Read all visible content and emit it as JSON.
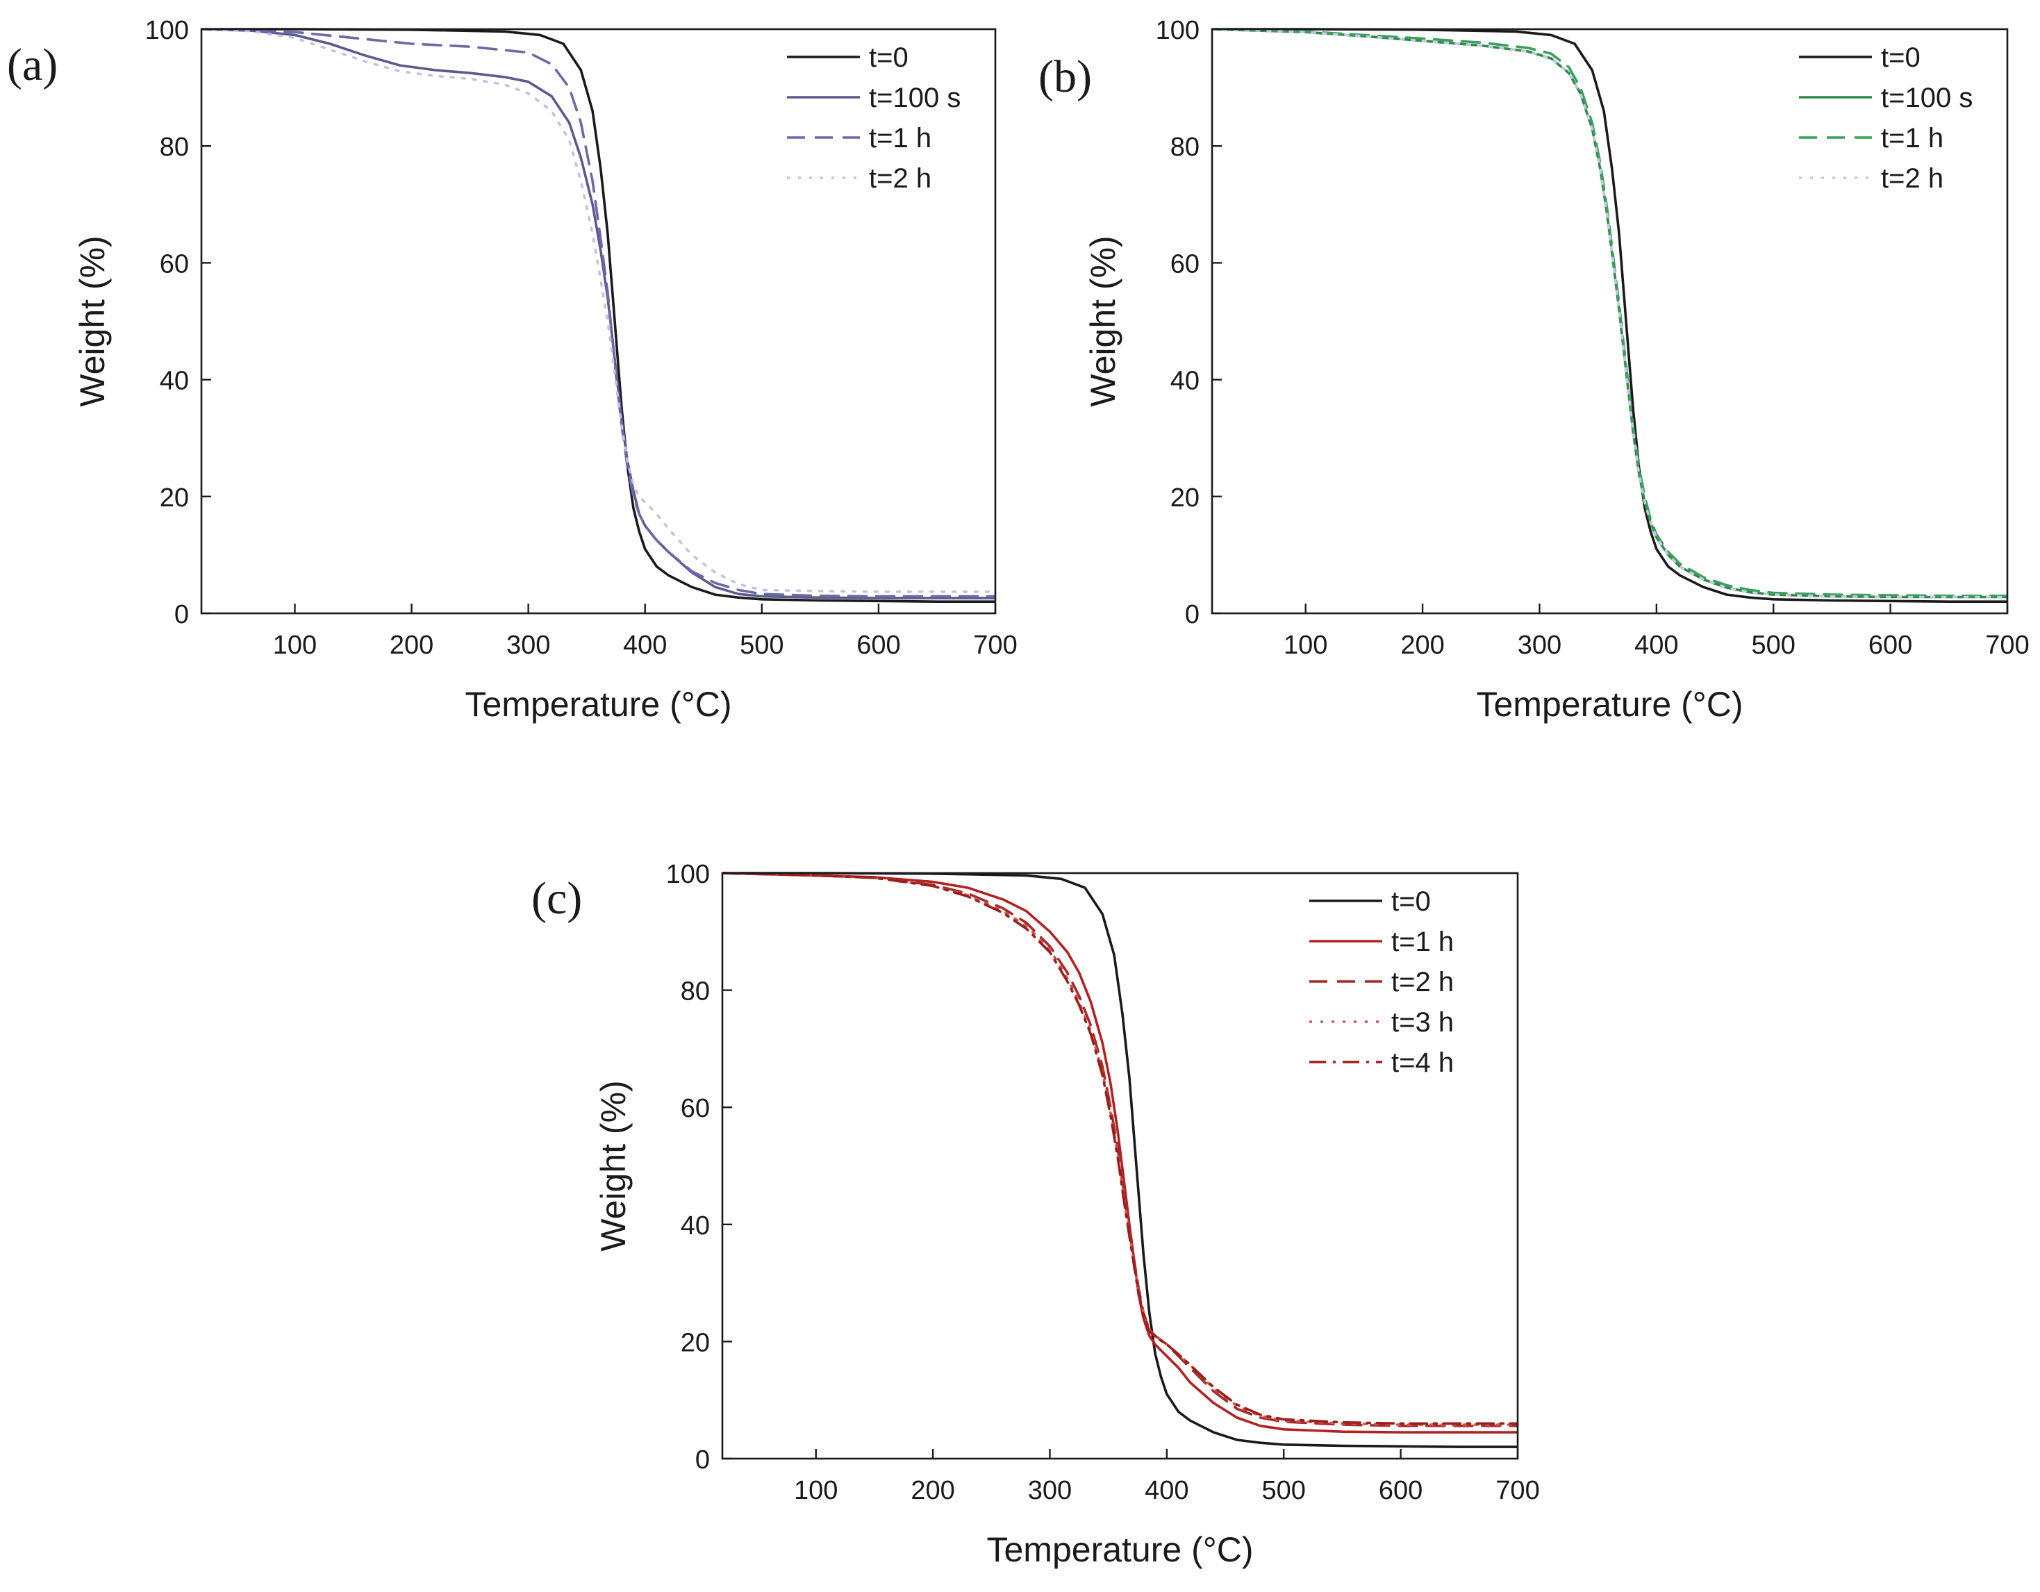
{
  "chart_data": [
    {
      "type": "line",
      "panel_label": "(a)",
      "xlabel": "Temperature (°C)",
      "ylabel": "Weight (%)",
      "xlim": [
        20,
        700
      ],
      "ylim": [
        0,
        100
      ],
      "xticks": [
        100,
        200,
        300,
        400,
        500,
        600,
        700
      ],
      "yticks": [
        0,
        20,
        40,
        60,
        80,
        100
      ],
      "legend_position": "top-right",
      "series": [
        {
          "name": "t=0",
          "color": "#1a1a1a",
          "dash": "solid",
          "x": [
            20,
            100,
            200,
            280,
            310,
            330,
            345,
            355,
            362,
            368,
            372,
            376,
            380,
            385,
            390,
            395,
            400,
            410,
            420,
            440,
            460,
            480,
            500,
            550,
            600,
            650,
            700
          ],
          "y": [
            100,
            100,
            99.9,
            99.6,
            99,
            97.5,
            93,
            86,
            76,
            65,
            55,
            45,
            35,
            25,
            18,
            14,
            11,
            8,
            6.5,
            4.5,
            3.2,
            2.7,
            2.4,
            2.2,
            2.1,
            2.0,
            2.0
          ]
        },
        {
          "name": "t=100 s",
          "color": "#5b5a8f",
          "dash": "solid",
          "x": [
            20,
            60,
            100,
            130,
            160,
            190,
            220,
            250,
            280,
            300,
            320,
            335,
            345,
            355,
            362,
            368,
            372,
            376,
            380,
            385,
            390,
            395,
            400,
            410,
            420,
            440,
            460,
            480,
            500,
            550,
            600,
            650,
            700
          ],
          "y": [
            100,
            99.8,
            99,
            97.5,
            95.5,
            93.8,
            93,
            92.5,
            91.8,
            91,
            88.5,
            84,
            78,
            70,
            62,
            54,
            47,
            40,
            33,
            26,
            21,
            17,
            15,
            12.5,
            10.5,
            7,
            4.5,
            3.3,
            2.9,
            2.7,
            2.6,
            2.6,
            2.6
          ]
        },
        {
          "name": "t=1 h",
          "color": "#6b6aa8",
          "dash": "dash",
          "x": [
            20,
            100,
            150,
            200,
            250,
            300,
            320,
            335,
            345,
            355,
            362,
            368,
            372,
            376,
            380,
            385,
            390,
            395,
            400,
            410,
            420,
            440,
            460,
            480,
            500,
            550,
            600,
            650,
            700
          ],
          "y": [
            100,
            99.5,
            98.5,
            97.5,
            97,
            96,
            94,
            90,
            84,
            74,
            64,
            55,
            47,
            39,
            32,
            25,
            20,
            17,
            15,
            12.5,
            10.5,
            7.2,
            5.2,
            4,
            3.3,
            3.0,
            2.9,
            2.9,
            2.9
          ]
        },
        {
          "name": "t=2 h",
          "color": "#c3c2e3",
          "dash": "dot",
          "x": [
            20,
            60,
            100,
            130,
            160,
            190,
            220,
            250,
            280,
            300,
            320,
            335,
            345,
            355,
            362,
            368,
            372,
            376,
            380,
            385,
            390,
            395,
            400,
            410,
            420,
            440,
            460,
            480,
            500,
            550,
            600,
            650,
            700
          ],
          "y": [
            100,
            99.7,
            98.5,
            96.5,
            94.5,
            92.8,
            92,
            91.5,
            90.5,
            89,
            86,
            81,
            74,
            65,
            57,
            50,
            44,
            38,
            32,
            26,
            22,
            20,
            19,
            17,
            14.5,
            10,
            7,
            5,
            4,
            3.8,
            3.7,
            3.7,
            3.7
          ]
        }
      ]
    },
    {
      "type": "line",
      "panel_label": "(b)",
      "xlabel": "Temperature (°C)",
      "ylabel": "Weight (%)",
      "xlim": [
        20,
        700
      ],
      "ylim": [
        0,
        100
      ],
      "xticks": [
        100,
        200,
        300,
        400,
        500,
        600,
        700
      ],
      "yticks": [
        0,
        20,
        40,
        60,
        80,
        100
      ],
      "legend_position": "top-right",
      "series": [
        {
          "name": "t=0",
          "color": "#1a1a1a",
          "dash": "solid",
          "x": [
            20,
            100,
            200,
            280,
            310,
            330,
            345,
            355,
            362,
            368,
            372,
            376,
            380,
            385,
            390,
            395,
            400,
            410,
            420,
            440,
            460,
            480,
            500,
            550,
            600,
            650,
            700
          ],
          "y": [
            100,
            100,
            99.9,
            99.6,
            99,
            97.5,
            93,
            86,
            76,
            65,
            55,
            45,
            35,
            25,
            18,
            14,
            11,
            8,
            6.5,
            4.5,
            3.2,
            2.7,
            2.4,
            2.2,
            2.1,
            2.0,
            2.0
          ]
        },
        {
          "name": "t=100 s",
          "color": "#2e8b46",
          "dash": "solid",
          "x": [
            20,
            100,
            150,
            200,
            250,
            290,
            310,
            325,
            335,
            345,
            352,
            358,
            363,
            368,
            372,
            376,
            380,
            385,
            390,
            395,
            400,
            410,
            420,
            440,
            460,
            480,
            500,
            550,
            600,
            650,
            700
          ],
          "y": [
            100,
            99.5,
            98.8,
            98,
            97.2,
            96.2,
            95,
            92.5,
            89,
            83,
            76,
            68,
            60,
            52,
            45,
            38,
            31,
            24,
            19,
            15.5,
            13,
            10,
            8,
            5.8,
            4.4,
            3.6,
            3.2,
            2.9,
            2.8,
            2.8,
            2.8
          ]
        },
        {
          "name": "t=1 h",
          "color": "#3aa05a",
          "dash": "dash",
          "x": [
            20,
            100,
            150,
            200,
            250,
            290,
            310,
            325,
            335,
            345,
            352,
            358,
            363,
            368,
            372,
            376,
            380,
            385,
            390,
            395,
            400,
            410,
            420,
            440,
            460,
            480,
            500,
            550,
            600,
            650,
            700
          ],
          "y": [
            100,
            99.6,
            99,
            98.4,
            97.7,
            96.8,
            95.8,
            93.5,
            90,
            84,
            77,
            69,
            61,
            53,
            46,
            39,
            32,
            25,
            20,
            16,
            13.5,
            10.5,
            8.5,
            6.2,
            4.8,
            4,
            3.5,
            3.2,
            3.1,
            3.0,
            3.0
          ]
        },
        {
          "name": "t=2 h",
          "color": "#c7c6ea",
          "dash": "dot",
          "x": [
            20,
            100,
            150,
            200,
            250,
            290,
            310,
            325,
            335,
            345,
            352,
            358,
            363,
            368,
            372,
            376,
            380,
            385,
            390,
            395,
            400,
            410,
            420,
            440,
            460,
            480,
            500,
            550,
            600,
            650,
            700
          ],
          "y": [
            100,
            99.5,
            98.8,
            98,
            97.2,
            96.2,
            95,
            92.5,
            89,
            83,
            76,
            68,
            60,
            52,
            45,
            38,
            31,
            24,
            19,
            15.5,
            13,
            10,
            8,
            5.8,
            4.4,
            3.6,
            3.2,
            2.9,
            2.8,
            2.8,
            2.8
          ]
        }
      ]
    },
    {
      "type": "line",
      "panel_label": "(c)",
      "xlabel": "Temperature (°C)",
      "ylabel": "Weight (%)",
      "xlim": [
        20,
        700
      ],
      "ylim": [
        0,
        100
      ],
      "xticks": [
        100,
        200,
        300,
        400,
        500,
        600,
        700
      ],
      "yticks": [
        0,
        20,
        40,
        60,
        80,
        100
      ],
      "legend_position": "top-right",
      "series": [
        {
          "name": "t=0",
          "color": "#1a1a1a",
          "dash": "solid",
          "x": [
            20,
            100,
            200,
            280,
            310,
            330,
            345,
            355,
            362,
            368,
            372,
            376,
            380,
            385,
            390,
            395,
            400,
            410,
            420,
            440,
            460,
            480,
            500,
            550,
            600,
            650,
            700
          ],
          "y": [
            100,
            100,
            99.9,
            99.6,
            99,
            97.5,
            93,
            86,
            76,
            65,
            55,
            45,
            35,
            25,
            18,
            14,
            11,
            8,
            6.5,
            4.5,
            3.2,
            2.7,
            2.4,
            2.2,
            2.1,
            2.0,
            2.0
          ]
        },
        {
          "name": "t=1 h",
          "color": "#b22222",
          "dash": "solid",
          "x": [
            20,
            100,
            150,
            200,
            230,
            260,
            280,
            300,
            315,
            325,
            335,
            345,
            352,
            358,
            363,
            368,
            372,
            376,
            380,
            385,
            390,
            400,
            410,
            420,
            440,
            460,
            480,
            500,
            550,
            600,
            650,
            700
          ],
          "y": [
            100,
            99.6,
            99.3,
            98.5,
            97.5,
            95.5,
            93.5,
            90,
            86.5,
            83,
            78,
            71,
            64,
            56,
            48,
            40,
            34,
            28,
            24,
            21,
            19.5,
            17.5,
            15.5,
            13,
            9.5,
            7,
            5.6,
            5.0,
            4.6,
            4.5,
            4.5,
            4.5
          ]
        },
        {
          "name": "t=2 h",
          "color": "#a52a2a",
          "dash": "dash",
          "x": [
            20,
            100,
            150,
            200,
            230,
            260,
            280,
            300,
            315,
            325,
            335,
            345,
            352,
            358,
            363,
            368,
            372,
            376,
            380,
            385,
            390,
            400,
            410,
            420,
            440,
            460,
            480,
            500,
            550,
            600,
            650,
            700
          ],
          "y": [
            100,
            99.6,
            99.2,
            98,
            96.5,
            94,
            91.5,
            87.5,
            83,
            79,
            74,
            67,
            60,
            53,
            46,
            39,
            34,
            29,
            25,
            22,
            21,
            19.5,
            17.5,
            15.5,
            11.5,
            8.5,
            7,
            6.3,
            5.8,
            5.6,
            5.6,
            5.6
          ]
        },
        {
          "name": "t=3 h",
          "color": "#d2554b",
          "dash": "dot",
          "x": [
            20,
            100,
            150,
            200,
            230,
            260,
            280,
            300,
            315,
            325,
            335,
            345,
            352,
            358,
            363,
            368,
            372,
            376,
            380,
            385,
            390,
            400,
            410,
            420,
            440,
            460,
            480,
            500,
            550,
            600,
            650,
            700
          ],
          "y": [
            100,
            99.6,
            99.2,
            97.8,
            96.2,
            93.5,
            91,
            87,
            82,
            78,
            73,
            66,
            59,
            52,
            45,
            38.5,
            33.5,
            28.5,
            25,
            22,
            21,
            19.5,
            17.8,
            16,
            12,
            9,
            7.3,
            6.5,
            6.0,
            5.8,
            5.8,
            5.8
          ]
        },
        {
          "name": "t=4 h",
          "color": "#9e1c1c",
          "dash": "dashdot",
          "x": [
            20,
            100,
            150,
            200,
            230,
            260,
            280,
            300,
            315,
            325,
            335,
            345,
            352,
            358,
            363,
            368,
            372,
            376,
            380,
            385,
            390,
            400,
            410,
            420,
            440,
            460,
            480,
            500,
            550,
            600,
            650,
            700
          ],
          "y": [
            100,
            99.6,
            99.2,
            97.8,
            96,
            93.2,
            90.5,
            86.5,
            81.5,
            77.5,
            72.5,
            65.5,
            58.5,
            51.5,
            44.5,
            38,
            33,
            28,
            24.5,
            21.8,
            20.8,
            19.5,
            17.8,
            16,
            12.2,
            9.2,
            7.5,
            6.7,
            6.2,
            6.0,
            6.0,
            6.0
          ]
        }
      ]
    }
  ]
}
